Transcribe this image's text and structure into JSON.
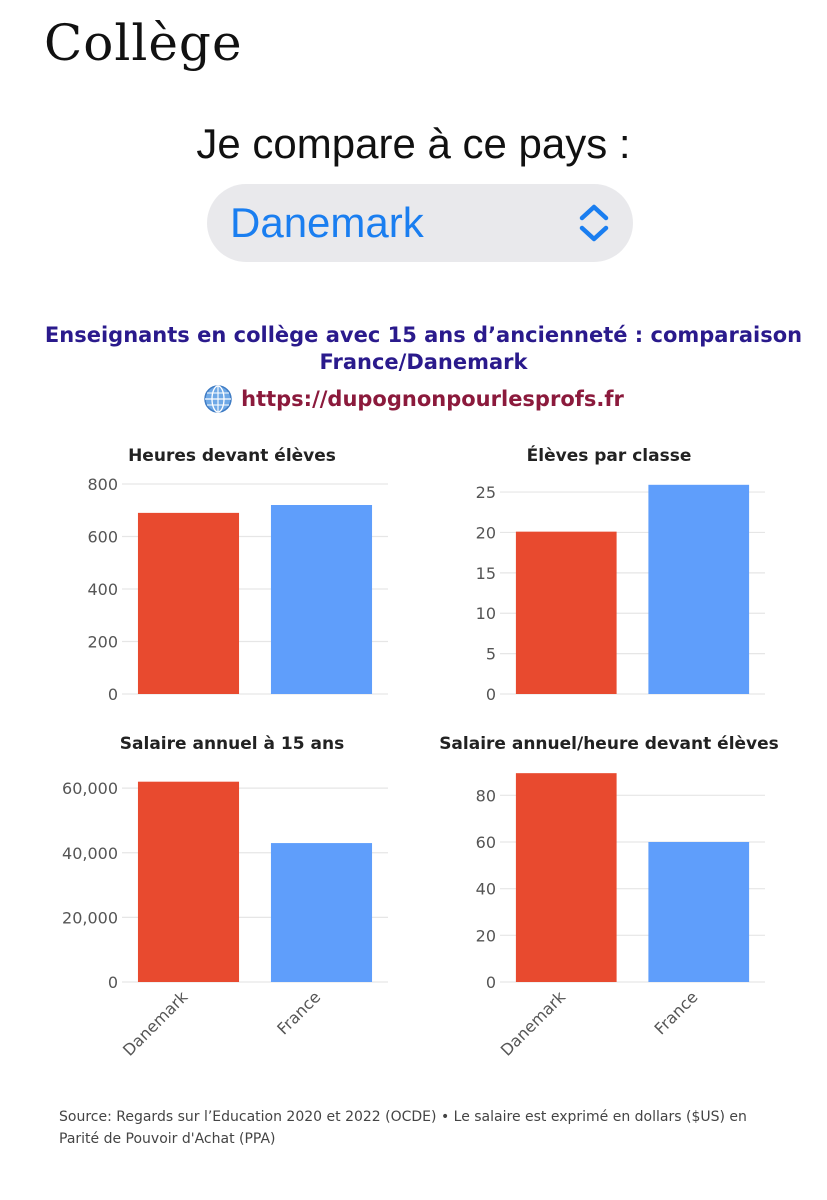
{
  "header": {
    "title": "Collège"
  },
  "compare": {
    "label": "Je compare à ce pays :",
    "selected": "Danemark"
  },
  "icons": {
    "selector": "chevron-up-down-icon",
    "link": "globe-icon"
  },
  "chart_header": {
    "title": "Enseignants en collège avec 15 ans d’ancienneté : comparaison France/Danemark",
    "link": "https://dupognonpourlesprofs.fr"
  },
  "colors": {
    "Danemark": "#e84a2f",
    "France": "#5f9efb",
    "title": "#2a1a8c",
    "link": "#8b1a3c"
  },
  "chart_data": [
    {
      "type": "bar",
      "title": "Heures devant élèves",
      "categories": [
        "Danemark",
        "France"
      ],
      "values": [
        690,
        720
      ],
      "ylim": [
        0,
        800
      ],
      "yticks": [
        0,
        200,
        400,
        600,
        800
      ],
      "ytick_labels": [
        "0",
        "200",
        "400",
        "600",
        "800"
      ],
      "xlabel": "",
      "ylabel": "",
      "grid": true
    },
    {
      "type": "bar",
      "title": "Élèves par classe",
      "categories": [
        "Danemark",
        "France"
      ],
      "values": [
        20.1,
        25.9
      ],
      "ylim": [
        0,
        26
      ],
      "yticks": [
        0,
        5,
        10,
        15,
        20,
        25
      ],
      "ytick_labels": [
        "0",
        "5",
        "10",
        "15",
        "20",
        "25"
      ],
      "xlabel": "",
      "ylabel": "",
      "grid": true
    },
    {
      "type": "bar",
      "title": "Salaire annuel à 15 ans",
      "categories": [
        "Danemark",
        "France"
      ],
      "values": [
        62000,
        43000
      ],
      "ylim": [
        0,
        65000
      ],
      "yticks": [
        0,
        20000,
        40000,
        60000
      ],
      "ytick_labels": [
        "0",
        "20,000",
        "40,000",
        "60,000"
      ],
      "xlabel": "",
      "ylabel": "",
      "grid": true
    },
    {
      "type": "bar",
      "title": "Salaire annuel/heure devant élèves",
      "categories": [
        "Danemark",
        "France"
      ],
      "values": [
        89.5,
        60
      ],
      "ylim": [
        0,
        90
      ],
      "yticks": [
        0,
        20,
        40,
        60,
        80
      ],
      "ytick_labels": [
        "0",
        "20",
        "40",
        "60",
        "80"
      ],
      "xlabel": "",
      "ylabel": "",
      "grid": true
    }
  ],
  "footer": {
    "source": "Source: Regards sur l’Education 2020 et 2022 (OCDE) • Le salaire est exprimé en dollars ($US) en Parité de Pouvoir d'Achat (PPA)"
  }
}
